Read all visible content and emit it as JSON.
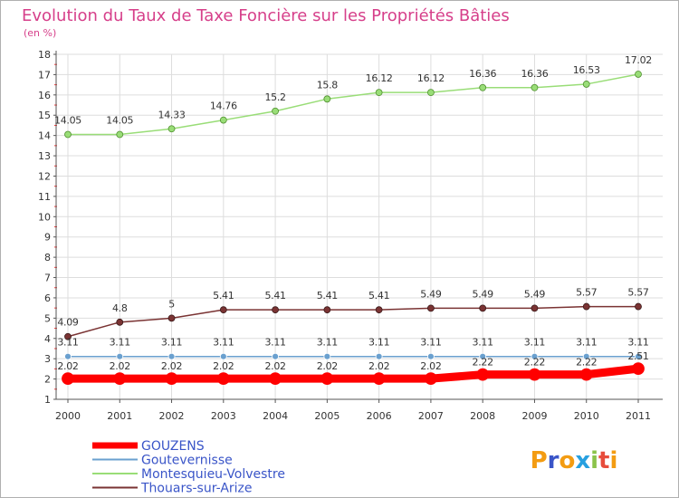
{
  "chart_data": {
    "type": "line",
    "title": "Evolution du Taux de Taxe Foncière sur les Propriétés Bâties",
    "subtitle": "(en %)",
    "x": [
      "2000",
      "2001",
      "2002",
      "2003",
      "2004",
      "2005",
      "2006",
      "2007",
      "2008",
      "2009",
      "2010",
      "2011"
    ],
    "ylim": [
      1,
      18
    ],
    "yticks": [
      "1",
      "2",
      "3",
      "4",
      "5",
      "6",
      "7",
      "8",
      "9",
      "10",
      "11",
      "12",
      "13",
      "14",
      "15",
      "16",
      "17",
      "18"
    ],
    "grid": true,
    "legend_position": "bottom-left",
    "series": [
      {
        "name": "GOUZENS",
        "color": "#ff0000",
        "values": [
          2.02,
          2.02,
          2.02,
          2.02,
          2.02,
          2.02,
          2.02,
          2.02,
          2.22,
          2.22,
          2.22,
          2.51
        ],
        "labels": [
          "2.02",
          "2.02",
          "2.02",
          "2.02",
          "2.02",
          "2.02",
          "2.02",
          "2.02",
          "2.22",
          "2.22",
          "2.22",
          "2.51"
        ]
      },
      {
        "name": "Goutevernisse",
        "color": "#6aa0cf",
        "values": [
          3.11,
          3.11,
          3.11,
          3.11,
          3.11,
          3.11,
          3.11,
          3.11,
          3.11,
          3.11,
          3.11,
          3.11
        ],
        "labels": [
          "3.11",
          "3.11",
          "3.11",
          "3.11",
          "3.11",
          "3.11",
          "3.11",
          "3.11",
          "3.11",
          "3.11",
          "3.11",
          "3.11"
        ]
      },
      {
        "name": "Montesquieu-Volvestre",
        "color": "#99dd77",
        "values": [
          14.05,
          14.05,
          14.33,
          14.76,
          15.2,
          15.8,
          16.12,
          16.12,
          16.36,
          16.36,
          16.53,
          17.02
        ],
        "labels": [
          "14.05",
          "14.05",
          "14.33",
          "14.76",
          "15.2",
          "15.8",
          "16.12",
          "16.12",
          "16.36",
          "16.36",
          "16.53",
          "17.02"
        ]
      },
      {
        "name": "Thouars-sur-Arize",
        "color": "#7a3333",
        "values": [
          4.09,
          4.8,
          5.0,
          5.41,
          5.41,
          5.41,
          5.41,
          5.49,
          5.49,
          5.49,
          5.57,
          5.57
        ],
        "labels": [
          "4.09",
          "4.8",
          "5",
          "5.41",
          "5.41",
          "5.41",
          "5.41",
          "5.49",
          "5.49",
          "5.49",
          "5.57",
          "5.57"
        ]
      }
    ]
  },
  "colors": {
    "title": "#d63f8a",
    "legend_text": "#3a55c8",
    "axis": "#555555",
    "grid": "#dddddd",
    "tick_marks": "#ff3333"
  },
  "logo": {
    "text": "Proxiti"
  }
}
